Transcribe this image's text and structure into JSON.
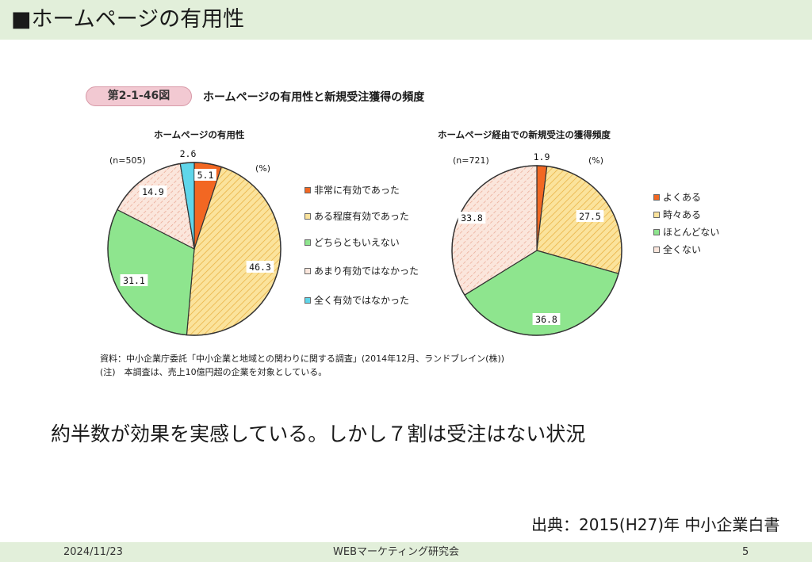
{
  "slide": {
    "title": "■ホームページの有用性",
    "conclusion": "約半数が効果を実感している。しかし７割は受注はない状況",
    "source": "出典：2015(H27)年 中小企業白書"
  },
  "figure": {
    "badge": "第2-1-46図",
    "title": "ホームページの有用性と新規受注獲得の頻度",
    "note_source": "資料：中小企業庁委託「中小企業と地域との関わりに関する調査」(2014年12月、ランドブレイン(株))",
    "note_caveat": "(注)　本調査は、売上10億円超の企業を対象としている。"
  },
  "footer": {
    "date": "2024/11/23",
    "organization": "WEBマーケティング研究会",
    "page": "5"
  },
  "chart_data": [
    {
      "type": "pie",
      "title": "ホームページの有用性",
      "sample": "(n=505)",
      "unit": "(%)",
      "categories": [
        "非常に有効であった",
        "ある程度有効であった",
        "どちらともいえない",
        "あまり有効ではなかった",
        "全く有効ではなかった"
      ],
      "values": [
        5.1,
        46.3,
        31.1,
        14.9,
        2.6
      ],
      "labels": [
        "5.1",
        "46.3",
        "31.1",
        "14.9",
        "2.6"
      ],
      "colors": [
        "#f26722",
        "#fbe39c",
        "#8ee58e",
        "#fbe6dc",
        "#5fd6ea"
      ],
      "legend_position": "right"
    },
    {
      "type": "pie",
      "title": "ホームページ経由での新規受注の獲得頻度",
      "sample": "(n=721)",
      "unit": "(%)",
      "categories": [
        "よくある",
        "時々ある",
        "ほとんどない",
        "全くない"
      ],
      "values": [
        1.9,
        27.5,
        36.8,
        33.8
      ],
      "labels": [
        "1.9",
        "27.5",
        "36.8",
        "33.8"
      ],
      "colors": [
        "#f26722",
        "#fbe39c",
        "#8ee58e",
        "#fbe6dc"
      ],
      "legend_position": "right"
    }
  ]
}
